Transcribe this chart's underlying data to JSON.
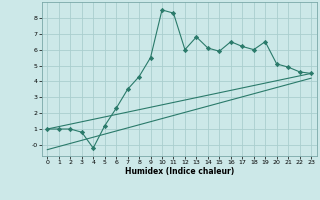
{
  "xlabel": "Humidex (Indice chaleur)",
  "x_values": [
    0,
    1,
    2,
    3,
    4,
    5,
    6,
    7,
    8,
    9,
    10,
    11,
    12,
    13,
    14,
    15,
    16,
    17,
    18,
    19,
    20,
    21,
    22,
    23
  ],
  "y_line1": [
    1,
    1,
    1,
    0.8,
    -0.2,
    1.2,
    2.3,
    3.5,
    4.3,
    5.5,
    8.5,
    8.3,
    6.0,
    6.8,
    6.1,
    5.9,
    6.5,
    6.2,
    6.0,
    6.5,
    5.1,
    4.9,
    4.6,
    4.5
  ],
  "y_line2_x": [
    0,
    23
  ],
  "y_line2_y": [
    1.0,
    4.5
  ],
  "y_line3_x": [
    0,
    23
  ],
  "y_line3_y": [
    -0.3,
    4.2
  ],
  "ylim": [
    -0.7,
    9.0
  ],
  "xlim": [
    -0.5,
    23.5
  ],
  "yticks": [
    0,
    1,
    2,
    3,
    4,
    5,
    6,
    7,
    8
  ],
  "xticks": [
    0,
    1,
    2,
    3,
    4,
    5,
    6,
    7,
    8,
    9,
    10,
    11,
    12,
    13,
    14,
    15,
    16,
    17,
    18,
    19,
    20,
    21,
    22,
    23
  ],
  "line_color": "#2a7a6a",
  "bg_color": "#cce8e8",
  "grid_color": "#aacece",
  "marker": "D",
  "marker_size": 2.2,
  "line_width": 0.8
}
